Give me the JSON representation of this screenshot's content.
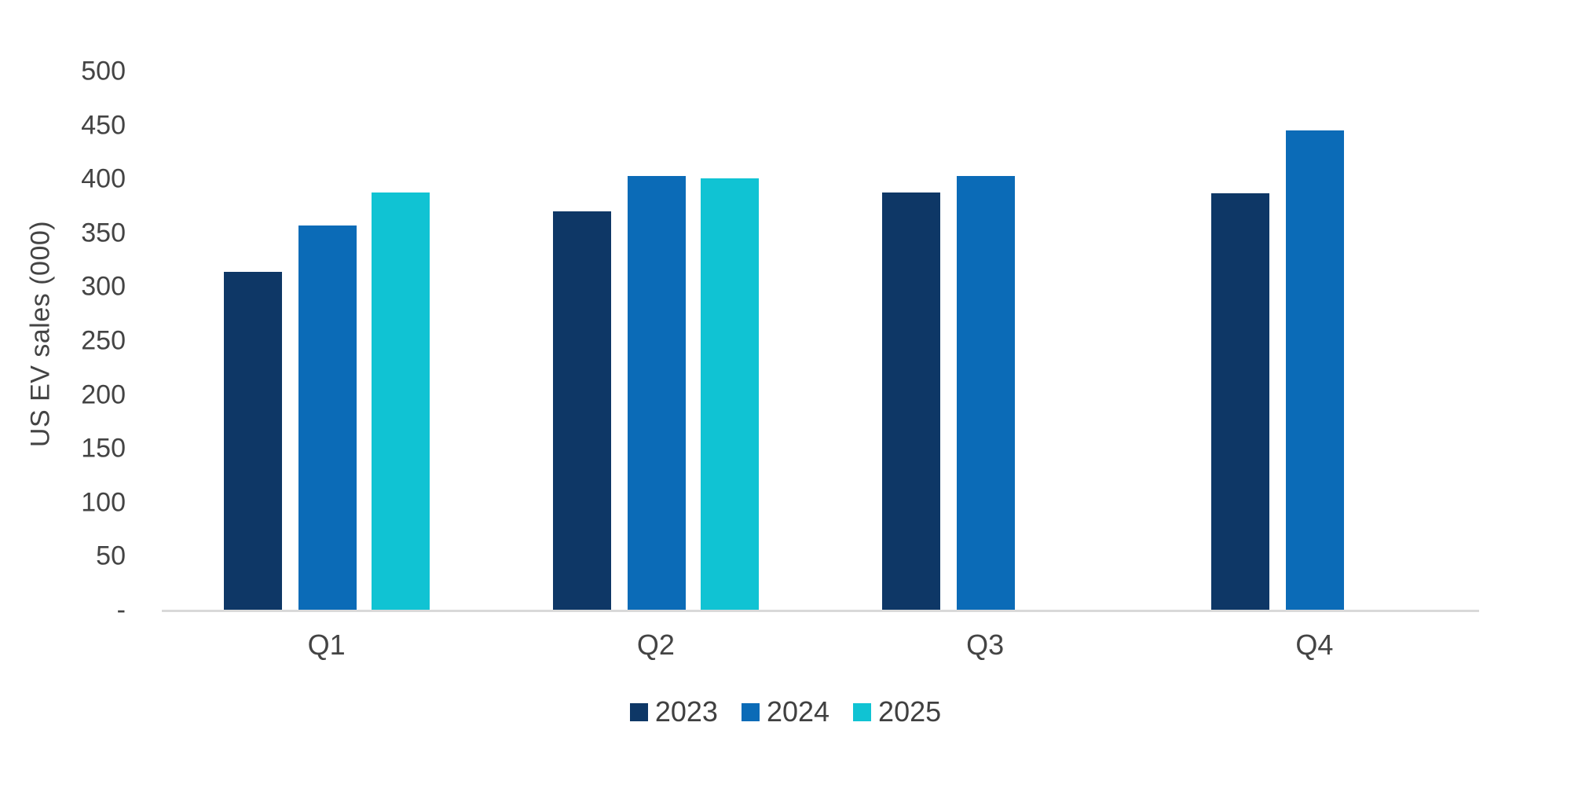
{
  "chart_data": {
    "type": "bar",
    "title": "",
    "xlabel": "",
    "ylabel": "US EV sales (000)",
    "categories": [
      "Q1",
      "Q2",
      "Q3",
      "Q4"
    ],
    "series": [
      {
        "name": "2023",
        "color": "#0e3766",
        "values": [
          314,
          370,
          388,
          387
        ]
      },
      {
        "name": "2024",
        "color": "#0b6bb7",
        "values": [
          357,
          403,
          403,
          445
        ]
      },
      {
        "name": "2025",
        "color": "#10c3d3",
        "values": [
          388,
          401,
          null,
          null
        ]
      }
    ],
    "ylim": [
      0,
      500
    ],
    "y_ticks": [
      0,
      50,
      100,
      150,
      200,
      250,
      300,
      350,
      400,
      450,
      500
    ],
    "zero_tick_label": "-",
    "grid": false,
    "legend_position": "bottom",
    "colors": {
      "axis_line": "#d9d9d9",
      "text": "#444444"
    }
  }
}
